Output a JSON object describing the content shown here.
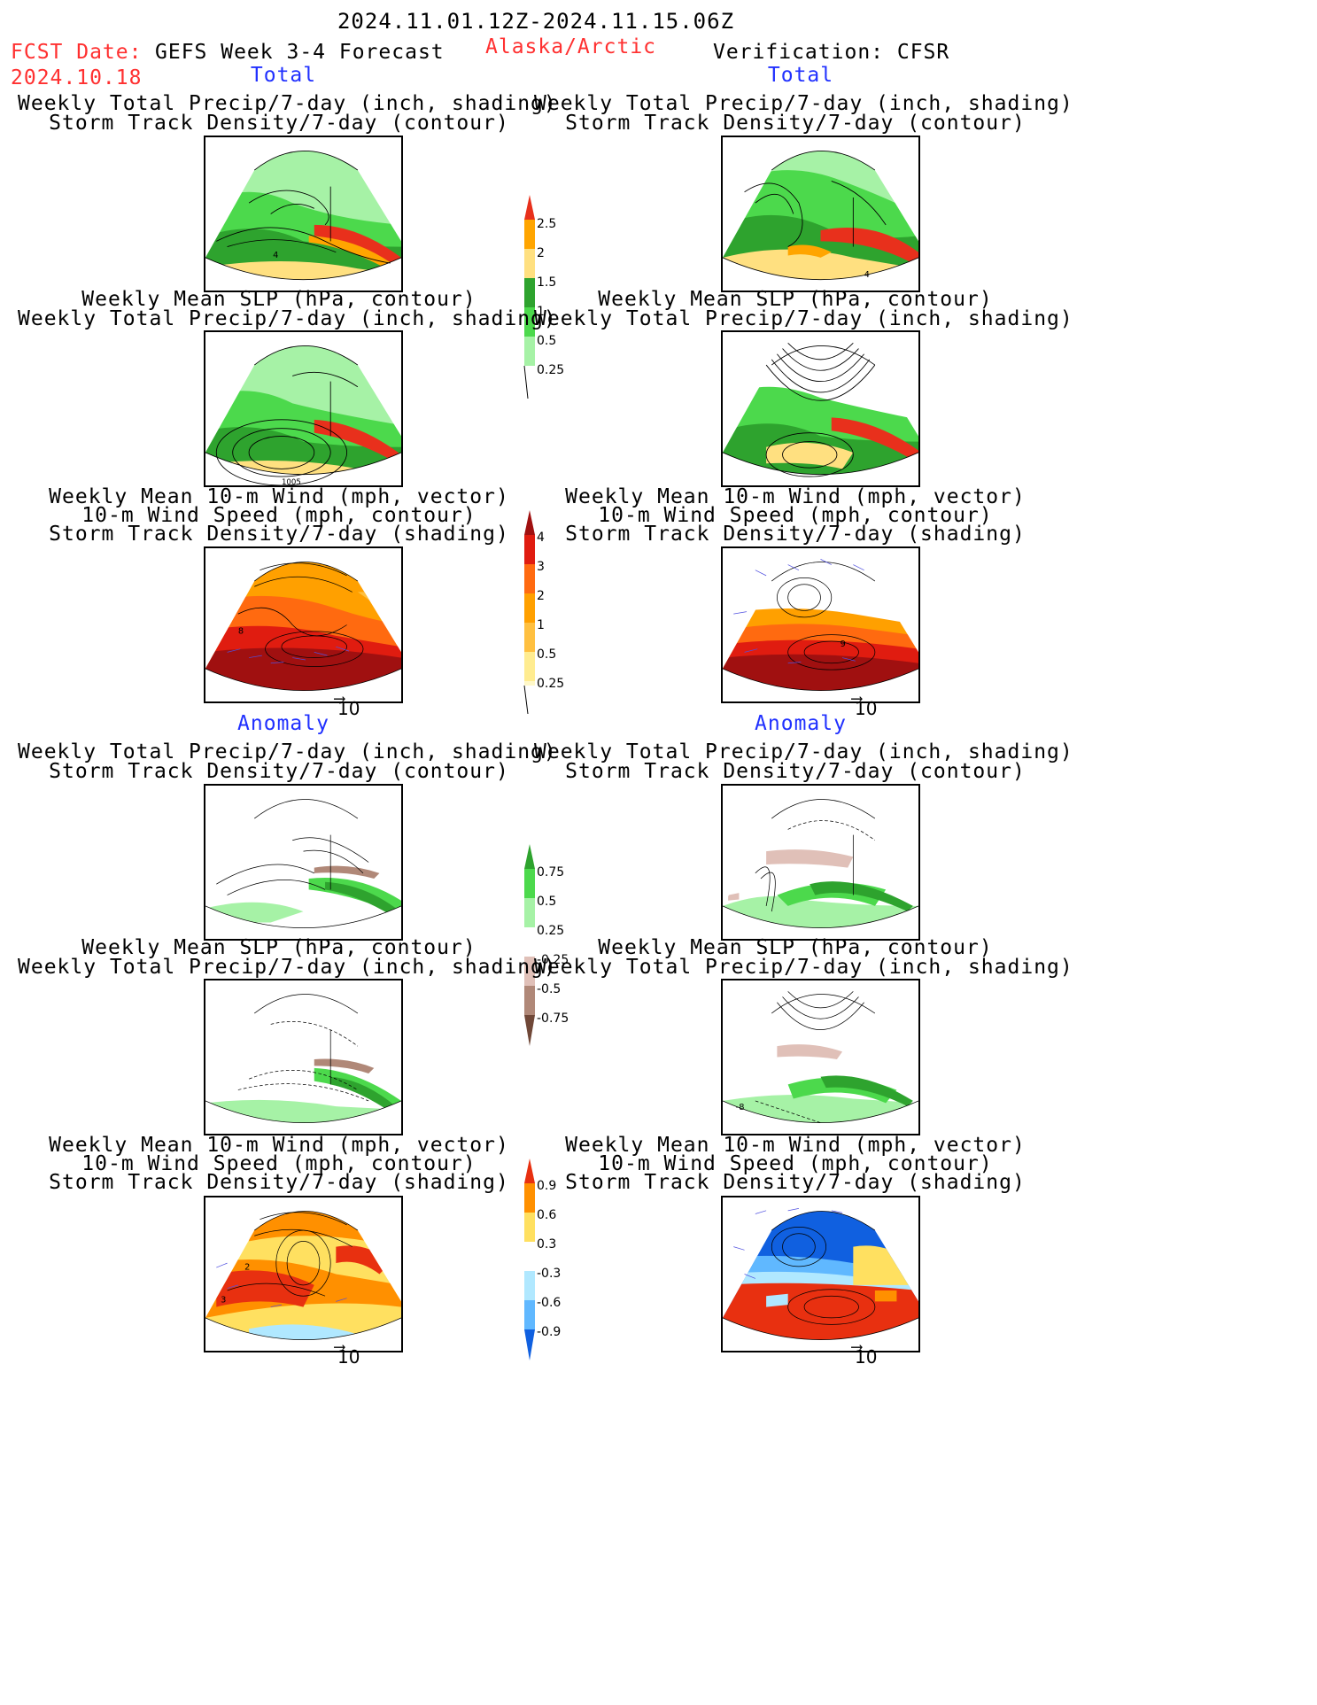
{
  "header": {
    "date_range": "2024.11.01.12Z-2024.11.15.06Z",
    "fcst_label": "FCST Date:",
    "fcst_date": "2024.10.18",
    "forecast_title": "GEFS Week 3-4 Forecast",
    "region": "Alaska/Arctic",
    "verification": "Verification: CFSR"
  },
  "sections": {
    "total": "Total",
    "anomaly": "Anomaly"
  },
  "titles": {
    "precip_storm": [
      "Weekly Total Precip/7-day (inch, shading)",
      "Storm Track Density/7-day (contour)"
    ],
    "slp_precip": [
      "Weekly Mean SLP (hPa, contour)",
      "Weekly Total Precip/7-day (inch, shading)"
    ],
    "wind_storm": [
      "Weekly Mean 10-m Wind (mph, vector)",
      "10-m Wind Speed (mph, contour)",
      "Storm Track Density/7-day (shading)"
    ]
  },
  "arrow_label": "10",
  "colorbars": {
    "precip_total": {
      "ticks": [
        "2.5",
        "2",
        "1.5",
        "1",
        "0.5",
        "0.25"
      ],
      "colors": [
        "#e8301c",
        "#ffa500",
        "#ffe080",
        "#2ea32e",
        "#4cd94c",
        "#a6f2a6"
      ]
    },
    "storm_total": {
      "ticks": [
        "4",
        "3",
        "2",
        "1",
        "0.5",
        "0.25"
      ],
      "colors": [
        "#a01010",
        "#e01c10",
        "#ff6a10",
        "#ffa000",
        "#ffc040",
        "#ffec90",
        "#fff8c8"
      ]
    },
    "precip_anom": {
      "ticks": [
        "0.75",
        "0.5",
        "0.25",
        "-0.25",
        "-0.5",
        "-0.75"
      ],
      "colors": [
        "#2ea32e",
        "#4cd94c",
        "#a6f2a6",
        "#ffffff",
        "#e0c0b8",
        "#b08878",
        "#704838"
      ]
    },
    "storm_anom": {
      "ticks": [
        "0.9",
        "0.6",
        "0.3",
        "-0.3",
        "-0.6",
        "-0.9"
      ],
      "colors": [
        "#e83010",
        "#ff9000",
        "#ffe060",
        "#ffffff",
        "#b0e8ff",
        "#60b8ff",
        "#1060e0"
      ]
    }
  },
  "panel_labels": {
    "p1": "4",
    "p2": "4",
    "p3": "1005",
    "p5": "8",
    "p6": "9",
    "p10": "-8",
    "p11a": "2",
    "p11b": "3"
  }
}
